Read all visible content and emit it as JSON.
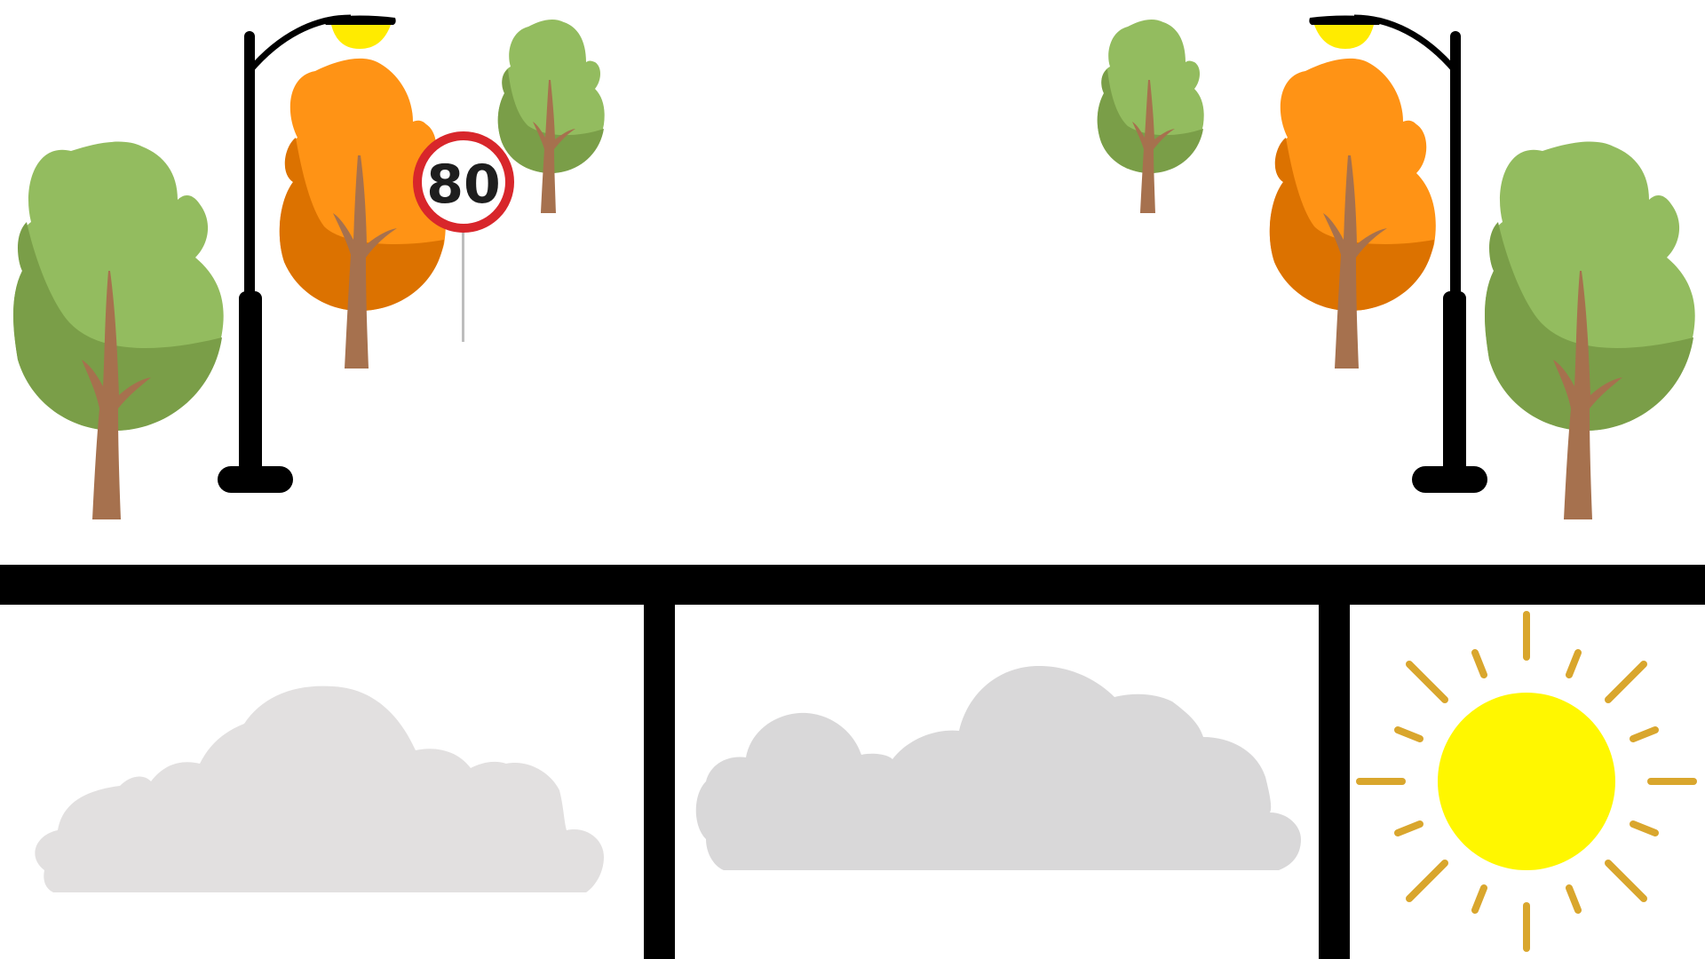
{
  "speed_sign": {
    "value": "80"
  },
  "colors": {
    "tree_green_light": "#93BC5F",
    "tree_green_dark": "#7A9E48",
    "tree_orange_light": "#FF9315",
    "tree_orange_dark": "#DC7200",
    "trunk": "#A6714E",
    "lamp_pole": "#000000",
    "lamp_light": "#FFEB00",
    "sign_ring": "#D8262B",
    "cloud_1": "#E2E0E0",
    "cloud_2": "#D9D8D9",
    "sun": "#FFF700",
    "sun_rays": "#D9A62D"
  },
  "panels": [
    {
      "id": "panel-1",
      "icon": "cloud-icon"
    },
    {
      "id": "panel-2",
      "icon": "cloud-icon"
    },
    {
      "id": "panel-3",
      "icon": "sun-icon"
    }
  ]
}
